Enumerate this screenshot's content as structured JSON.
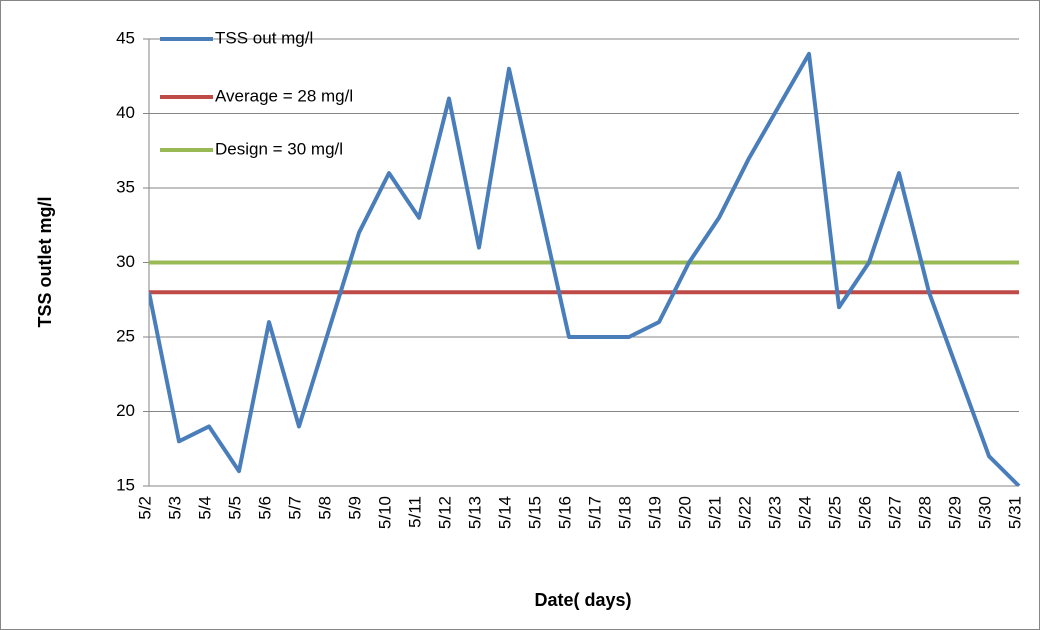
{
  "chart_data": {
    "type": "line",
    "x_label": "Date( days)",
    "y_label": "TSS outlet mg/l",
    "categories": [
      "5/2",
      "5/3",
      "5/4",
      "5/5",
      "5/6",
      "5/7",
      "5/8",
      "5/9",
      "5/10",
      "5/11",
      "5/12",
      "5/13",
      "5/14",
      "5/15",
      "5/16",
      "5/17",
      "5/18",
      "5/19",
      "5/20",
      "5/21",
      "5/22",
      "5/23",
      "5/24",
      "5/25",
      "5/26",
      "5/27",
      "5/28",
      "5/29",
      "5/30",
      "5/31"
    ],
    "series": [
      {
        "name": "TSS out mg/l",
        "color": "#4a7ebb",
        "values": [
          28,
          18,
          19,
          16,
          26,
          19,
          25.5,
          32,
          36,
          33,
          41,
          31,
          43,
          34,
          25,
          25,
          25,
          26,
          30,
          33,
          37,
          40.5,
          44,
          27,
          30,
          36,
          28,
          22.5,
          17,
          15
        ]
      },
      {
        "name": "Average = 28 mg/l",
        "color": "#be4b48",
        "values": [
          28,
          28,
          28,
          28,
          28,
          28,
          28,
          28,
          28,
          28,
          28,
          28,
          28,
          28,
          28,
          28,
          28,
          28,
          28,
          28,
          28,
          28,
          28,
          28,
          28,
          28,
          28,
          28,
          28,
          28
        ]
      },
      {
        "name": "Design = 30 mg/l",
        "color": "#98b954",
        "values": [
          30,
          30,
          30,
          30,
          30,
          30,
          30,
          30,
          30,
          30,
          30,
          30,
          30,
          30,
          30,
          30,
          30,
          30,
          30,
          30,
          30,
          30,
          30,
          30,
          30,
          30,
          30,
          30,
          30,
          30
        ]
      }
    ],
    "ylim": [
      15,
      45
    ],
    "yticks": [
      15,
      20,
      25,
      30,
      35,
      40,
      45
    ],
    "grid": true,
    "legend": "top-left"
  }
}
